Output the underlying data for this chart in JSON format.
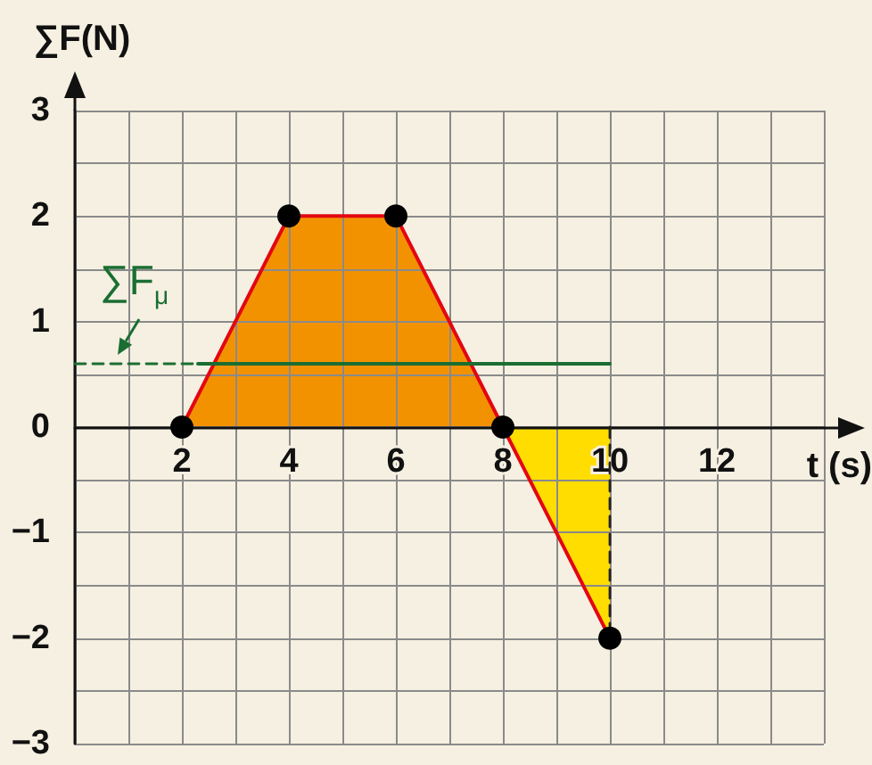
{
  "chart_data": {
    "type": "line",
    "ylabel": "∑F(N)",
    "xlabel": "t (s)",
    "xlim": [
      0,
      14
    ],
    "xticks": [
      {
        "value": 1,
        "label": null
      },
      2,
      {
        "value": 3,
        "label": null
      },
      4,
      {
        "value": 5,
        "label": null
      },
      6,
      {
        "value": 7,
        "label": null
      },
      8,
      {
        "value": 9,
        "label": null
      },
      10,
      {
        "value": 11,
        "label": null
      },
      12,
      {
        "value": 13,
        "label": null
      },
      {
        "value": 14,
        "label": null
      }
    ],
    "ylim": [
      -3,
      3
    ],
    "yticks": [
      {
        "value": -3,
        "label": "−3"
      },
      {
        "value": -2.5,
        "label": null
      },
      {
        "value": -2,
        "label": "−2"
      },
      {
        "value": -1.5,
        "label": null
      },
      {
        "value": -1,
        "label": "−1"
      },
      {
        "value": -0.5,
        "label": null
      },
      0,
      {
        "value": 0.5,
        "label": null
      },
      1,
      {
        "value": 1.5,
        "label": null
      },
      2,
      {
        "value": 2.5,
        "label": null
      },
      3
    ],
    "grid": true,
    "series": [
      {
        "type": "area",
        "color": "#f39200",
        "x": [
          2,
          4,
          6,
          8
        ],
        "values": [
          0,
          2,
          2,
          0
        ]
      },
      {
        "type": "area",
        "color": "#ffdd00",
        "x": [
          8,
          10
        ],
        "values": [
          0,
          -2
        ]
      },
      {
        "color": "#222222",
        "line_style": "dashed",
        "x": [
          10,
          10
        ],
        "values": [
          0,
          -2
        ]
      },
      {
        "color": "#e30613",
        "x": [
          2,
          4,
          6,
          8,
          10
        ],
        "values": [
          0,
          2,
          2,
          0,
          -2
        ]
      },
      {
        "color": "#1a6e32",
        "line_style": "dashed",
        "x": [
          0,
          2.3
        ],
        "values": [
          0.6,
          0.6
        ]
      },
      {
        "color": "#1a6e32",
        "x": [
          2.3,
          10
        ],
        "values": [
          0.6,
          0.6
        ]
      },
      {
        "type": "scatter",
        "color": "#000000",
        "marker": "circle",
        "x": [
          2,
          4,
          6,
          8,
          10
        ],
        "values": [
          0,
          2,
          2,
          0,
          -2
        ]
      }
    ],
    "annotations": [
      {
        "text": "∑F$_{μ}$",
        "x": 0.8,
        "y": 0.6
      }
    ]
  }
}
